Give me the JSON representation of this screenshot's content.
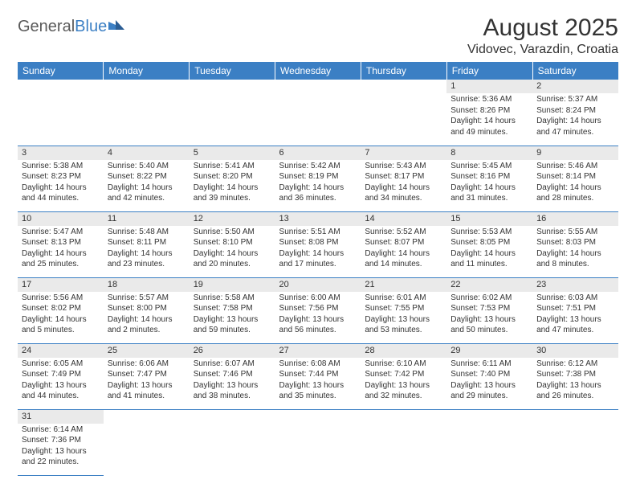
{
  "brand": {
    "part1": "General",
    "part2": "Blue"
  },
  "title": "August 2025",
  "location": "Vidovec, Varazdin, Croatia",
  "colors": {
    "header_bg": "#3b7fc4",
    "header_text": "#ffffff",
    "daynum_bg": "#eaeaea",
    "cell_border": "#3b7fc4",
    "text": "#333333",
    "page_bg": "#ffffff"
  },
  "typography": {
    "title_fontsize": 30,
    "location_fontsize": 16,
    "weekday_fontsize": 12,
    "daynum_fontsize": 11,
    "detail_fontsize": 10
  },
  "weekdays": [
    "Sunday",
    "Monday",
    "Tuesday",
    "Wednesday",
    "Thursday",
    "Friday",
    "Saturday"
  ],
  "days": [
    {
      "n": 1,
      "sunrise": "5:36 AM",
      "sunset": "8:26 PM",
      "dl_h": 14,
      "dl_m": 49
    },
    {
      "n": 2,
      "sunrise": "5:37 AM",
      "sunset": "8:24 PM",
      "dl_h": 14,
      "dl_m": 47
    },
    {
      "n": 3,
      "sunrise": "5:38 AM",
      "sunset": "8:23 PM",
      "dl_h": 14,
      "dl_m": 44
    },
    {
      "n": 4,
      "sunrise": "5:40 AM",
      "sunset": "8:22 PM",
      "dl_h": 14,
      "dl_m": 42
    },
    {
      "n": 5,
      "sunrise": "5:41 AM",
      "sunset": "8:20 PM",
      "dl_h": 14,
      "dl_m": 39
    },
    {
      "n": 6,
      "sunrise": "5:42 AM",
      "sunset": "8:19 PM",
      "dl_h": 14,
      "dl_m": 36
    },
    {
      "n": 7,
      "sunrise": "5:43 AM",
      "sunset": "8:17 PM",
      "dl_h": 14,
      "dl_m": 34
    },
    {
      "n": 8,
      "sunrise": "5:45 AM",
      "sunset": "8:16 PM",
      "dl_h": 14,
      "dl_m": 31
    },
    {
      "n": 9,
      "sunrise": "5:46 AM",
      "sunset": "8:14 PM",
      "dl_h": 14,
      "dl_m": 28
    },
    {
      "n": 10,
      "sunrise": "5:47 AM",
      "sunset": "8:13 PM",
      "dl_h": 14,
      "dl_m": 25
    },
    {
      "n": 11,
      "sunrise": "5:48 AM",
      "sunset": "8:11 PM",
      "dl_h": 14,
      "dl_m": 23
    },
    {
      "n": 12,
      "sunrise": "5:50 AM",
      "sunset": "8:10 PM",
      "dl_h": 14,
      "dl_m": 20
    },
    {
      "n": 13,
      "sunrise": "5:51 AM",
      "sunset": "8:08 PM",
      "dl_h": 14,
      "dl_m": 17
    },
    {
      "n": 14,
      "sunrise": "5:52 AM",
      "sunset": "8:07 PM",
      "dl_h": 14,
      "dl_m": 14
    },
    {
      "n": 15,
      "sunrise": "5:53 AM",
      "sunset": "8:05 PM",
      "dl_h": 14,
      "dl_m": 11
    },
    {
      "n": 16,
      "sunrise": "5:55 AM",
      "sunset": "8:03 PM",
      "dl_h": 14,
      "dl_m": 8
    },
    {
      "n": 17,
      "sunrise": "5:56 AM",
      "sunset": "8:02 PM",
      "dl_h": 14,
      "dl_m": 5
    },
    {
      "n": 18,
      "sunrise": "5:57 AM",
      "sunset": "8:00 PM",
      "dl_h": 14,
      "dl_m": 2
    },
    {
      "n": 19,
      "sunrise": "5:58 AM",
      "sunset": "7:58 PM",
      "dl_h": 13,
      "dl_m": 59
    },
    {
      "n": 20,
      "sunrise": "6:00 AM",
      "sunset": "7:56 PM",
      "dl_h": 13,
      "dl_m": 56
    },
    {
      "n": 21,
      "sunrise": "6:01 AM",
      "sunset": "7:55 PM",
      "dl_h": 13,
      "dl_m": 53
    },
    {
      "n": 22,
      "sunrise": "6:02 AM",
      "sunset": "7:53 PM",
      "dl_h": 13,
      "dl_m": 50
    },
    {
      "n": 23,
      "sunrise": "6:03 AM",
      "sunset": "7:51 PM",
      "dl_h": 13,
      "dl_m": 47
    },
    {
      "n": 24,
      "sunrise": "6:05 AM",
      "sunset": "7:49 PM",
      "dl_h": 13,
      "dl_m": 44
    },
    {
      "n": 25,
      "sunrise": "6:06 AM",
      "sunset": "7:47 PM",
      "dl_h": 13,
      "dl_m": 41
    },
    {
      "n": 26,
      "sunrise": "6:07 AM",
      "sunset": "7:46 PM",
      "dl_h": 13,
      "dl_m": 38
    },
    {
      "n": 27,
      "sunrise": "6:08 AM",
      "sunset": "7:44 PM",
      "dl_h": 13,
      "dl_m": 35
    },
    {
      "n": 28,
      "sunrise": "6:10 AM",
      "sunset": "7:42 PM",
      "dl_h": 13,
      "dl_m": 32
    },
    {
      "n": 29,
      "sunrise": "6:11 AM",
      "sunset": "7:40 PM",
      "dl_h": 13,
      "dl_m": 29
    },
    {
      "n": 30,
      "sunrise": "6:12 AM",
      "sunset": "7:38 PM",
      "dl_h": 13,
      "dl_m": 26
    },
    {
      "n": 31,
      "sunrise": "6:14 AM",
      "sunset": "7:36 PM",
      "dl_h": 13,
      "dl_m": 22
    }
  ],
  "first_weekday_index": 5,
  "labels": {
    "sunrise": "Sunrise: ",
    "sunset": "Sunset: ",
    "daylight_prefix": "Daylight: ",
    "hours_word": " hours",
    "and_word": "and ",
    "minutes_word": " minutes."
  }
}
